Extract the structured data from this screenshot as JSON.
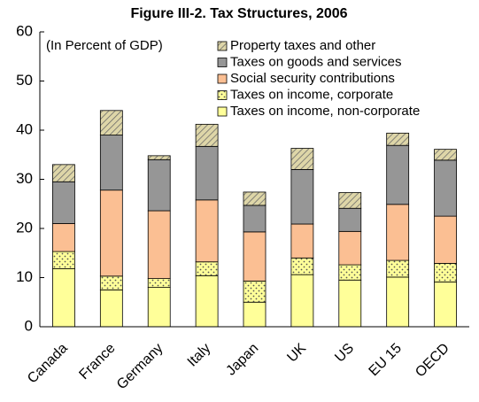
{
  "chart_data": {
    "type": "stacked_bar",
    "title": "Figure III-2. Tax Structures, 2006",
    "annotation": "(In Percent of GDP)",
    "categories": [
      "Canada",
      "France",
      "Germany",
      "Italy",
      "Japan",
      "UK",
      "US",
      "EU 15",
      "OECD"
    ],
    "series": [
      {
        "name": "Taxes on income, non-corporate",
        "color": "#ffff99",
        "values": [
          11.8,
          7.5,
          8,
          10.4,
          5,
          10.6,
          9.5,
          10.1,
          9.1
        ]
      },
      {
        "name": "Taxes on income, corporate",
        "color": "#ffff99",
        "pattern": "dots",
        "values": [
          3.5,
          2.8,
          1.8,
          2.8,
          4.3,
          3.4,
          3.1,
          3.4,
          3.8
        ]
      },
      {
        "name": "Social security contributions",
        "color": "#fbbf93",
        "values": [
          5.7,
          17.5,
          13.8,
          12.6,
          10,
          6.9,
          6.8,
          11.4,
          9.6
        ]
      },
      {
        "name": "Taxes on goods and services",
        "color": "#969696",
        "values": [
          8.5,
          11.2,
          10.4,
          10.9,
          5.4,
          11.1,
          4.7,
          12,
          11.4
        ]
      },
      {
        "name": "Property taxes and other",
        "color": "#ded6a8",
        "pattern": "hatch",
        "values": [
          3.5,
          5,
          0.8,
          4.5,
          2.7,
          4.3,
          3.2,
          2.5,
          2.2
        ]
      }
    ],
    "ylim": [
      0,
      60
    ],
    "yticks": [
      0,
      10,
      20,
      30,
      40,
      50,
      60
    ],
    "grid": false
  }
}
